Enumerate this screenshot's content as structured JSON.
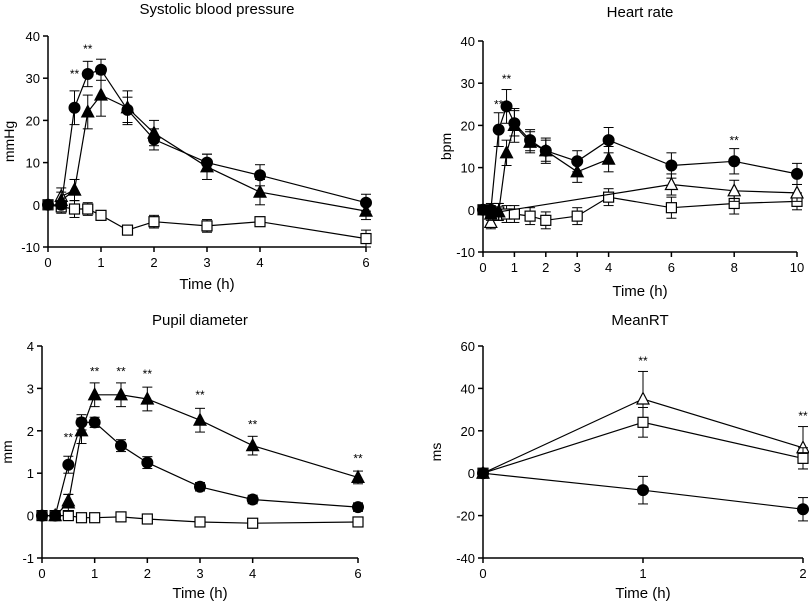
{
  "chart_data": [
    {
      "type": "line",
      "title": "Systolic blood pressure",
      "xlabel": "Time (h)",
      "ylabel": "mmHg",
      "xlim": [
        0,
        6
      ],
      "ylim": [
        -10,
        40
      ],
      "xticks": [
        "0",
        "1",
        "2",
        "3",
        "4",
        "6"
      ],
      "xtick_values": [
        0,
        1,
        2,
        3,
        4,
        6
      ],
      "yticks": [
        "-10",
        "0",
        "10",
        "20",
        "30",
        "40"
      ],
      "ytick_values": [
        -10,
        0,
        10,
        20,
        30,
        40
      ],
      "series": [
        {
          "name": "open-square",
          "marker": "square-open",
          "x": [
            0,
            0.25,
            0.5,
            0.75,
            1,
            1.5,
            2,
            3,
            4,
            6
          ],
          "y": [
            0,
            -0.5,
            -1,
            -1,
            -2.5,
            -6,
            -4,
            -5,
            -4,
            -8
          ],
          "err": [
            0.5,
            1.5,
            2,
            1.5,
            1,
            1,
            1.5,
            1.5,
            1,
            2
          ]
        },
        {
          "name": "open-triangle",
          "marker": "triangle-open",
          "x": [
            0.25,
            0.5
          ],
          "y": [
            2,
            3.5
          ],
          "err": [
            2,
            2.5
          ]
        },
        {
          "name": "filled-triangle",
          "marker": "triangle-filled",
          "x": [
            0.25,
            0.5,
            0.75,
            1,
            1.5,
            2,
            3,
            4,
            6
          ],
          "y": [
            1,
            3.5,
            22,
            26,
            23,
            17,
            9,
            3,
            -1.5
          ],
          "err": [
            2,
            2.5,
            4,
            5,
            4,
            3,
            3,
            3,
            2
          ]
        },
        {
          "name": "filled-circle",
          "marker": "circle-filled",
          "x": [
            0,
            0.25,
            0.5,
            0.75,
            1,
            1.5,
            2,
            3,
            4,
            6
          ],
          "y": [
            0,
            0,
            23,
            31,
            32,
            22.5,
            15.5,
            10,
            7,
            0.5
          ],
          "err": [
            0.5,
            1,
            4,
            3,
            2.5,
            3,
            2.5,
            2,
            2.5,
            2
          ]
        }
      ],
      "annotations": [
        {
          "text": "**",
          "x": 0.5,
          "y": 30
        },
        {
          "text": "**",
          "x": 0.75,
          "y": 36
        }
      ]
    },
    {
      "type": "line",
      "title": "Heart rate",
      "xlabel": "Time (h)",
      "ylabel": "bpm",
      "xlim": [
        0,
        10
      ],
      "ylim": [
        -10,
        40
      ],
      "xticks": [
        "0",
        "1",
        "2",
        "3",
        "4",
        "6",
        "8",
        "10"
      ],
      "xtick_values": [
        0,
        1,
        2,
        3,
        4,
        6,
        8,
        10
      ],
      "yticks": [
        "-10",
        "0",
        "10",
        "20",
        "30",
        "40"
      ],
      "ytick_values": [
        -10,
        0,
        10,
        20,
        30,
        40
      ],
      "series": [
        {
          "name": "open-square",
          "marker": "square-open",
          "x": [
            0,
            0.25,
            0.5,
            0.75,
            1,
            1.5,
            2,
            3,
            4,
            6,
            8,
            10
          ],
          "y": [
            0,
            -0.5,
            -0.5,
            -1,
            -1,
            -1.5,
            -2.5,
            -1.5,
            3,
            0.5,
            1.5,
            2
          ],
          "err": [
            1,
            1.5,
            2,
            2,
            2,
            2,
            2,
            2,
            2,
            2.5,
            2.5,
            2
          ]
        },
        {
          "name": "open-triangle",
          "marker": "triangle-open",
          "x": [
            0.25,
            0.5,
            6,
            8,
            10
          ],
          "y": [
            -3,
            -0.5,
            6,
            4.5,
            4
          ],
          "err": [
            1.5,
            2,
            2.5,
            2.5,
            2
          ]
        },
        {
          "name": "filled-triangle",
          "marker": "triangle-filled",
          "x": [
            0.25,
            0.5,
            0.75,
            1,
            1.5,
            2,
            3,
            4
          ],
          "y": [
            -1,
            -0.5,
            13.5,
            20,
            16,
            14,
            9,
            12
          ],
          "err": [
            1.5,
            2,
            3,
            4,
            2.5,
            3,
            2.5,
            3
          ]
        },
        {
          "name": "filled-circle",
          "marker": "circle-filled",
          "x": [
            0,
            0.25,
            0.5,
            0.75,
            1,
            1.5,
            2,
            3,
            4,
            6,
            8,
            10
          ],
          "y": [
            0,
            0,
            19,
            24.5,
            20.5,
            16.5,
            14,
            11.5,
            16.5,
            10.5,
            11.5,
            8.5
          ],
          "err": [
            1,
            1.5,
            4,
            4,
            3,
            2.5,
            2.5,
            2.5,
            3,
            3,
            3,
            2.5
          ]
        }
      ],
      "annotations": [
        {
          "text": "**",
          "x": 0.5,
          "y": 24
        },
        {
          "text": "**",
          "x": 0.75,
          "y": 30
        },
        {
          "text": "**",
          "x": 8,
          "y": 15.5
        }
      ]
    },
    {
      "type": "line",
      "title": "Pupil diameter",
      "xlabel": "Time (h)",
      "ylabel": "mm",
      "xlim": [
        0,
        6
      ],
      "ylim": [
        -1,
        4
      ],
      "xticks": [
        "0",
        "1",
        "2",
        "3",
        "4",
        "6"
      ],
      "xtick_values": [
        0,
        1,
        2,
        3,
        4,
        6
      ],
      "yticks": [
        "-1",
        "0",
        "1",
        "2",
        "3",
        "4"
      ],
      "ytick_values": [
        -1,
        0,
        1,
        2,
        3,
        4
      ],
      "series": [
        {
          "name": "open-square",
          "marker": "square-open",
          "x": [
            0,
            0.25,
            0.5,
            0.75,
            1,
            1.5,
            2,
            3,
            4,
            6
          ],
          "y": [
            0,
            0,
            0,
            -0.05,
            -0.05,
            -0.03,
            -0.08,
            -0.15,
            -0.18,
            -0.15
          ],
          "err": [
            0.02,
            0.04,
            0.05,
            0.05,
            0.05,
            0.05,
            0.05,
            0.05,
            0.05,
            0.05
          ]
        },
        {
          "name": "open-triangle",
          "marker": "triangle-open",
          "x": [
            0.5
          ],
          "y": [
            0.35
          ],
          "err": [
            0.15
          ]
        },
        {
          "name": "open-circle",
          "marker": "circle-open",
          "x": [
            6
          ],
          "y": [
            0.2
          ],
          "err": [
            0.1
          ]
        },
        {
          "name": "filled-triangle",
          "marker": "triangle-filled",
          "x": [
            0.25,
            0.5,
            0.75,
            1,
            1.5,
            2,
            3,
            4,
            6
          ],
          "y": [
            0,
            0.3,
            2.0,
            2.85,
            2.85,
            2.75,
            2.25,
            1.65,
            0.9
          ],
          "err": [
            0.05,
            0.2,
            0.3,
            0.28,
            0.28,
            0.28,
            0.28,
            0.22,
            0.15
          ]
        },
        {
          "name": "filled-circle",
          "marker": "circle-filled",
          "x": [
            0,
            0.25,
            0.5,
            0.75,
            1,
            1.5,
            2,
            3,
            4,
            6
          ],
          "y": [
            0,
            0,
            1.2,
            2.2,
            2.2,
            1.65,
            1.25,
            0.68,
            0.38,
            0.2
          ],
          "err": [
            0.02,
            0.04,
            0.2,
            0.18,
            0.12,
            0.14,
            0.14,
            0.1,
            0.1,
            0.08
          ]
        }
      ],
      "annotations": [
        {
          "text": "**",
          "x": 0.5,
          "y": 1.75
        },
        {
          "text": "**",
          "x": 1,
          "y": 3.3
        },
        {
          "text": "**",
          "x": 1.5,
          "y": 3.3
        },
        {
          "text": "**",
          "x": 2,
          "y": 3.25
        },
        {
          "text": "**",
          "x": 3,
          "y": 2.75
        },
        {
          "text": "**",
          "x": 4,
          "y": 2.05
        },
        {
          "text": "**",
          "x": 6,
          "y": 1.25
        }
      ]
    },
    {
      "type": "line",
      "title": "MeanRT",
      "xlabel": "Time (h)",
      "ylabel": "ms",
      "xlim": [
        0,
        2
      ],
      "ylim": [
        -40,
        60
      ],
      "xticks": [
        "0",
        "1",
        "2"
      ],
      "xtick_values": [
        0,
        1,
        2
      ],
      "yticks": [
        "-40",
        "-20",
        "0",
        "20",
        "40",
        "60"
      ],
      "ytick_values": [
        -40,
        -20,
        0,
        20,
        40,
        60
      ],
      "series": [
        {
          "name": "open-triangle",
          "marker": "triangle-open",
          "x": [
            0,
            1,
            2
          ],
          "y": [
            0,
            35,
            12
          ],
          "err": [
            0,
            13,
            10
          ]
        },
        {
          "name": "open-square",
          "marker": "square-open",
          "x": [
            0,
            1,
            2
          ],
          "y": [
            0,
            24,
            7
          ],
          "err": [
            0,
            7,
            5
          ]
        },
        {
          "name": "filled-circle",
          "marker": "circle-filled",
          "x": [
            0,
            1,
            2
          ],
          "y": [
            0,
            -8,
            -17
          ],
          "err": [
            0,
            6.5,
            5.5
          ]
        }
      ],
      "annotations": [
        {
          "text": "**",
          "x": 1,
          "y": 51
        },
        {
          "text": "**",
          "x": 2,
          "y": 25
        }
      ]
    }
  ]
}
